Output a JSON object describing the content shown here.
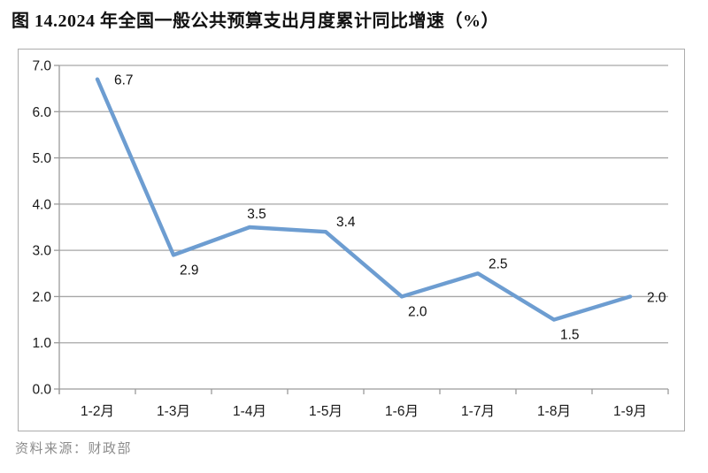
{
  "title": "图 14.2024 年全国一般公共预算支出月度累计同比增速（%）",
  "source": "资料来源：财政部",
  "chart_data": {
    "type": "line",
    "title": "图 14.2024 年全国一般公共预算支出月度累计同比增速（%）",
    "categories": [
      "1-2月",
      "1-3月",
      "1-4月",
      "1-5月",
      "1-6月",
      "1-7月",
      "1-8月",
      "1-9月"
    ],
    "values": [
      6.7,
      2.9,
      3.5,
      3.4,
      2.0,
      2.5,
      1.5,
      2.0
    ],
    "data_labels": [
      "6.7",
      "2.9",
      "3.5",
      "3.4",
      "2.0",
      "2.5",
      "1.5",
      "2.0"
    ],
    "label_positions": [
      "right",
      "below",
      "above",
      "above-right",
      "below",
      "above-right",
      "below",
      "right"
    ],
    "xlabel": "",
    "ylabel": "",
    "ylim": [
      0.0,
      7.0
    ],
    "ytick_step": 1.0,
    "yticks": [
      "0.0",
      "1.0",
      "2.0",
      "3.0",
      "4.0",
      "5.0",
      "6.0",
      "7.0"
    ],
    "grid": "horizontal",
    "legend": "none",
    "colors": {
      "line": "#6D9DD1",
      "grid": "#A6A6A6",
      "axis": "#9A9A9A",
      "border": "#ACACAC",
      "data_label_text": "#111111",
      "source_text": "#8C8C8C"
    }
  }
}
